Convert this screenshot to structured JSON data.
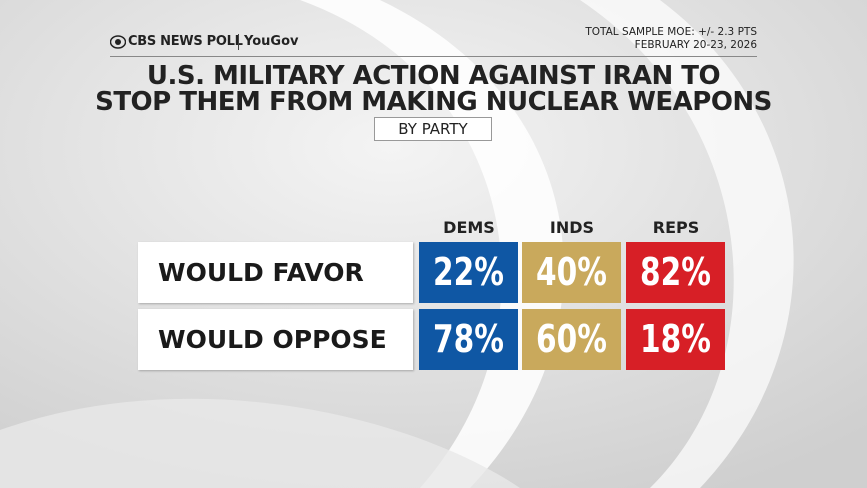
{
  "header": {
    "brand": "CBS NEWS POLL",
    "partner": "YouGov",
    "moe": "TOTAL SAMPLE MOE: +/- 2.3 PTS",
    "dates": "FEBRUARY 20-23, 2026"
  },
  "title": [
    "U.S. MILITARY ACTION AGAINST IRAN TO",
    "STOP THEM FROM MAKING NUCLEAR WEAPONS"
  ],
  "subtitle": "BY PARTY",
  "table": {
    "columns": [
      "DEMS",
      "INDS",
      "REPS"
    ],
    "rows": [
      {
        "label": "WOULD FAVOR",
        "cells": [
          "22%",
          "40%",
          "82%"
        ]
      },
      {
        "label": "WOULD OPPOSE",
        "cells": [
          "78%",
          "60%",
          "18%"
        ]
      }
    ]
  }
}
